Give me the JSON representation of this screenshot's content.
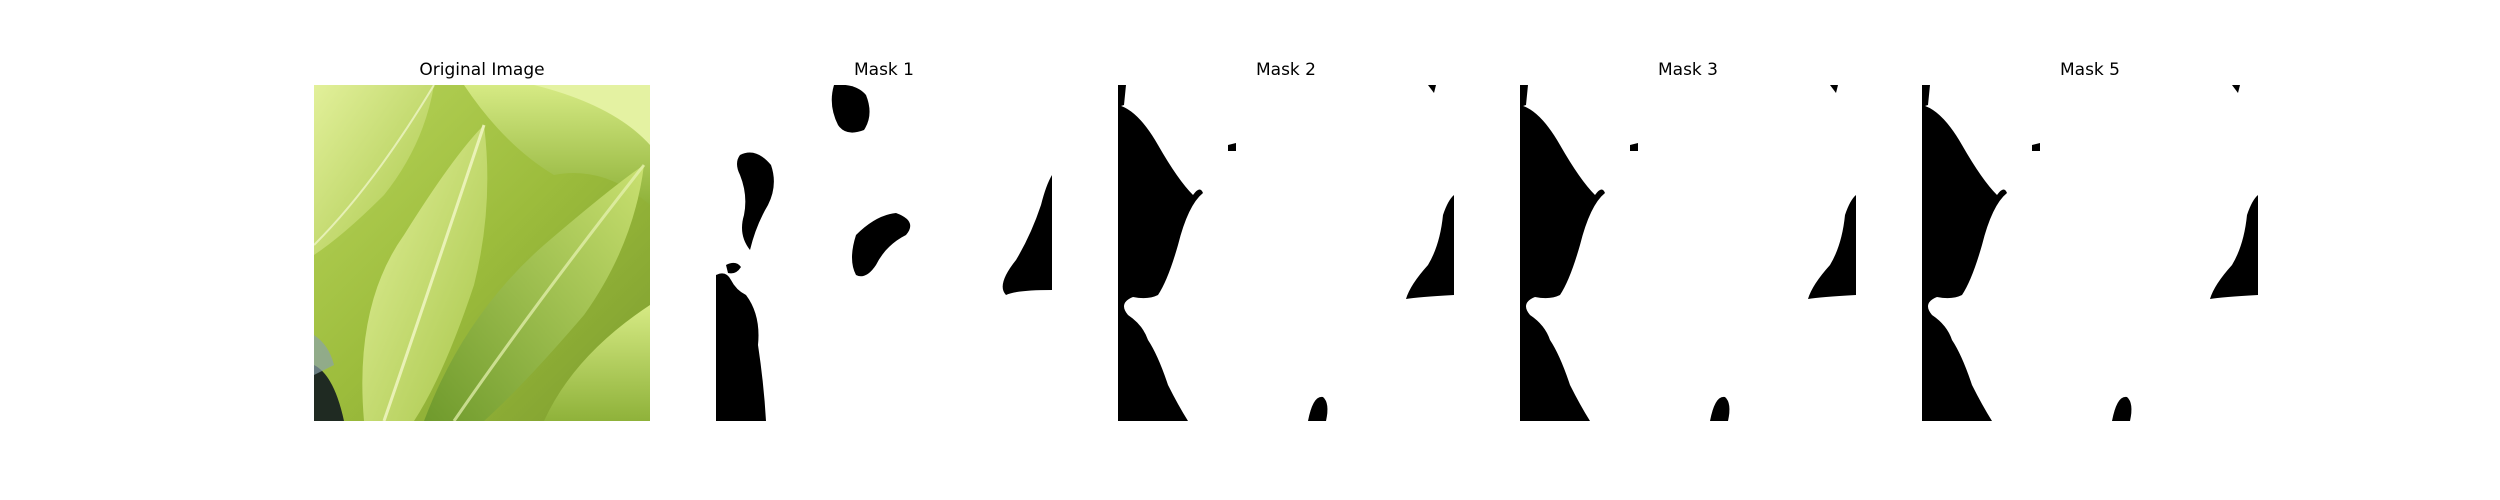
{
  "panels": [
    {
      "title": "Original Image",
      "kind": "photo"
    },
    {
      "title": "Mask 1",
      "kind": "mask"
    },
    {
      "title": "Mask 2",
      "kind": "mask"
    },
    {
      "title": "Mask 3",
      "kind": "mask"
    },
    {
      "title": "Mask 5",
      "kind": "mask"
    }
  ],
  "colors": {
    "mask_foreground": "#ffffff",
    "mask_background": "#000000",
    "leaf_light": "#cfe57a",
    "leaf_mid": "#a9c84a",
    "leaf_dark": "#6f8f2a"
  }
}
